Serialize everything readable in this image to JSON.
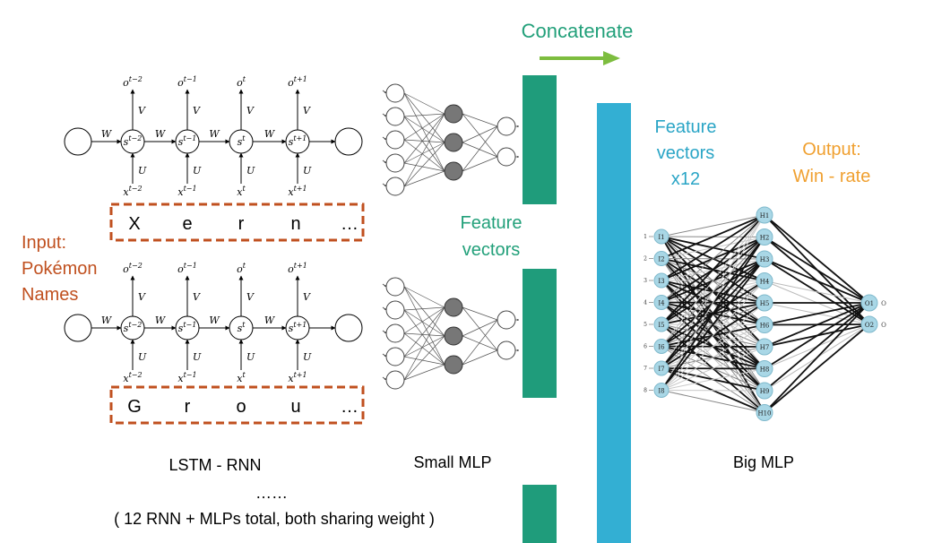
{
  "concat_label": "Concatenate",
  "input_label": [
    "Input:",
    "Pokémon",
    "Names"
  ],
  "feature_vectors_label": [
    "Feature",
    "vectors"
  ],
  "feature_vectors_x12_label": [
    "Feature",
    "vectors",
    "x12"
  ],
  "output_label": [
    "Output:",
    "Win - rate"
  ],
  "rnn": {
    "outputs": [
      "t−2",
      "t−1",
      "t",
      "t+1"
    ],
    "states": [
      "t−2",
      "t−1",
      "t",
      "t+1"
    ],
    "inputs": [
      "t−2",
      "t−1",
      "t",
      "t+1"
    ],
    "o": "o",
    "s": "s",
    "x": "x",
    "w": "W",
    "v": "V",
    "u": "U"
  },
  "name_rows": [
    [
      "X",
      "e",
      "r",
      "n",
      "…"
    ],
    [
      "G",
      "r",
      "o",
      "u",
      "…"
    ]
  ],
  "captions": {
    "lstm": "LSTM - RNN",
    "small_mlp": "Small MLP",
    "big_mlp": "Big MLP",
    "dots": "……",
    "total": "( 12 RNN + MLPs total, both sharing weight )"
  },
  "big_mlp": {
    "inputs": [
      "I1",
      "I2",
      "I3",
      "I4",
      "I5",
      "I6",
      "I7",
      "I8"
    ],
    "input_numbers": [
      "1",
      "2",
      "3",
      "4",
      "5",
      "6",
      "7",
      "8"
    ],
    "hidden": [
      "H1",
      "H2",
      "H3",
      "H4",
      "H5",
      "H6",
      "H7",
      "H8",
      "H9",
      "H10"
    ],
    "outputs": [
      "O1",
      "O2"
    ],
    "output_marks": [
      "O",
      "O"
    ]
  },
  "colors": {
    "orange_red": "#c0501f",
    "teal_text": "#2aa5c6",
    "orange": "#f0a030",
    "green_arrow": "#7dbd3f",
    "green_text": "#22a07a",
    "dark_teal_bar": "#1f9c7b",
    "blue_bar": "#33afd3",
    "node_fill": "#a9d7e6"
  }
}
